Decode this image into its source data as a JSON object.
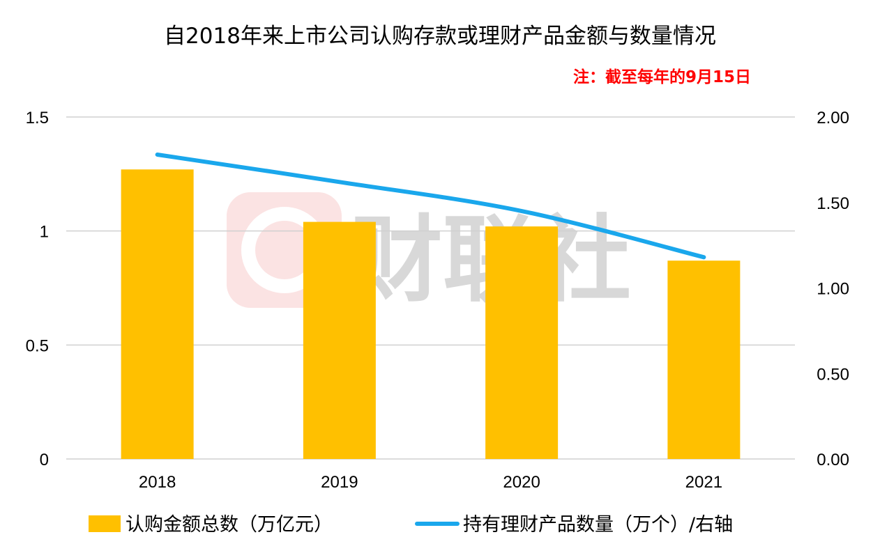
{
  "chart_data": {
    "type": "bar",
    "title": "自2018年来上市公司认购存款或理财产品金额与数量情况",
    "note": "注：截至每年的9月15日",
    "categories": [
      "2018",
      "2019",
      "2020",
      "2021"
    ],
    "series": [
      {
        "name": "认购金额总数（万亿元）",
        "type": "bar",
        "axis": "left",
        "color": "#FFC000",
        "values": [
          1.27,
          1.04,
          1.02,
          0.87
        ]
      },
      {
        "name": "持有理财产品数量（万个）/右轴",
        "type": "line",
        "axis": "right",
        "color": "#1AA7EC",
        "values": [
          1.78,
          1.62,
          1.45,
          1.18
        ]
      }
    ],
    "y_left": {
      "ylim": [
        0,
        1.5
      ],
      "ticks": [
        "0",
        "0.5",
        "1",
        "1.5"
      ],
      "tick_values": [
        0,
        0.5,
        1,
        1.5
      ]
    },
    "y_right": {
      "ylim": [
        0,
        2
      ],
      "ticks": [
        "0.00",
        "0.50",
        "1.00",
        "1.50",
        "2.00"
      ],
      "tick_values": [
        0,
        0.5,
        1,
        1.5,
        2
      ]
    },
    "grid": true,
    "legend_position": "bottom"
  },
  "watermark": {
    "text": "财联社",
    "color": "#d8d8d8",
    "logo_color": "#fbe3e3"
  }
}
